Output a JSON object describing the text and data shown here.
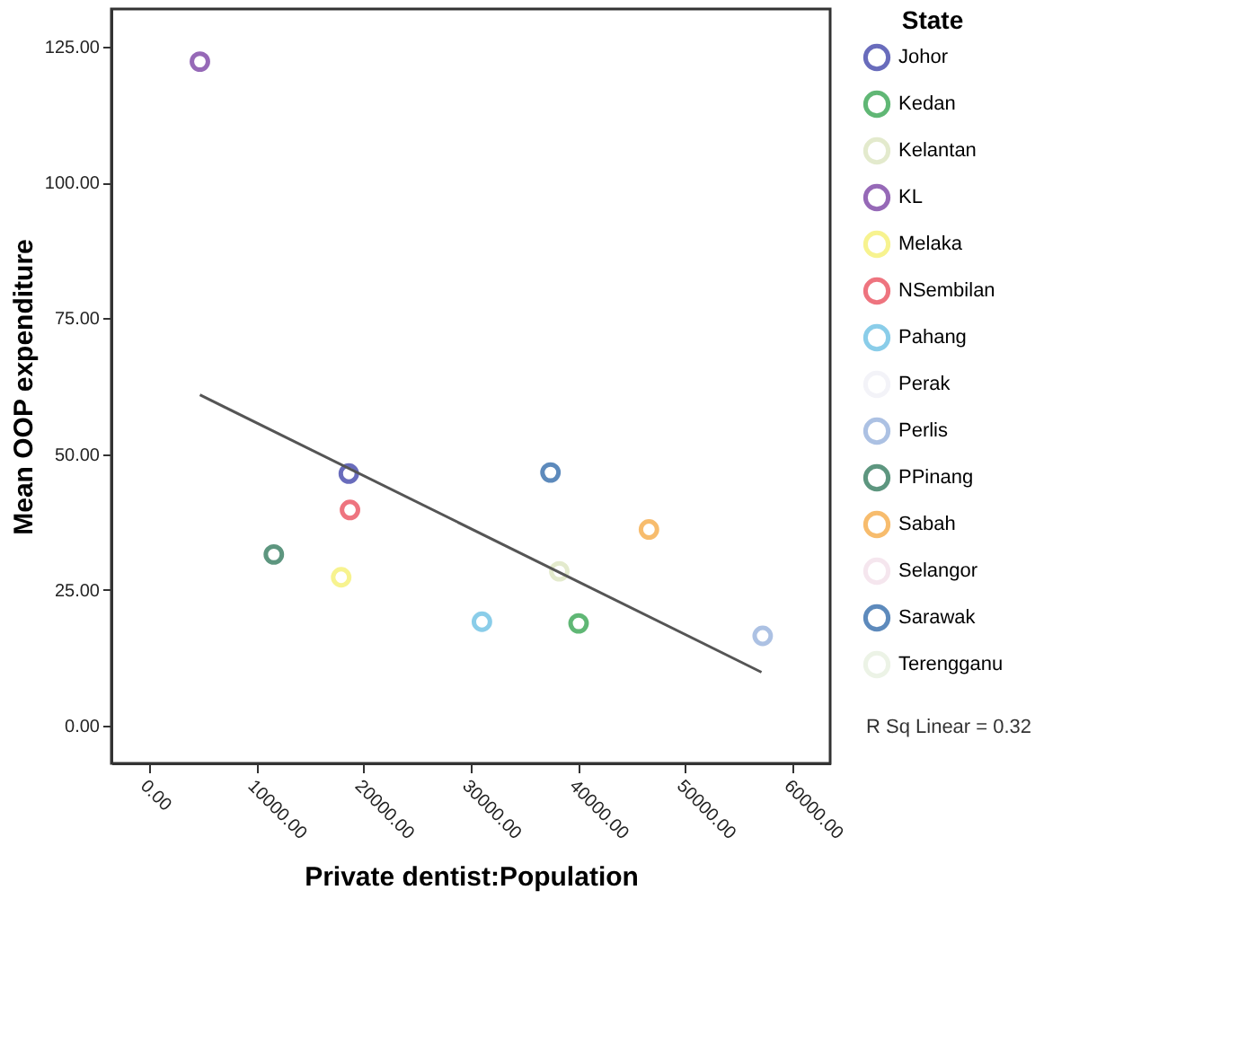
{
  "chart_data": {
    "type": "scatter",
    "xlabel": "Private dentist:Population",
    "ylabel": "Mean OOP expenditure",
    "legend_title": "State",
    "legend": "right",
    "marker": "circle",
    "grid": false,
    "xlim": [
      -3500,
      63500
    ],
    "ylim": [
      -7,
      132
    ],
    "xticks": [
      {
        "value": 0,
        "label": "0.00"
      },
      {
        "value": 10000,
        "label": "10000.00"
      },
      {
        "value": 20000,
        "label": "20000.00"
      },
      {
        "value": 30000,
        "label": "30000.00"
      },
      {
        "value": 40000,
        "label": "40000.00"
      },
      {
        "value": 50000,
        "label": "50000.00"
      },
      {
        "value": 60000,
        "label": "60000.00"
      }
    ],
    "yticks": [
      {
        "value": 0,
        "label": "0.00"
      },
      {
        "value": 25,
        "label": "25.00"
      },
      {
        "value": 50,
        "label": "50.00"
      },
      {
        "value": 75,
        "label": "75.00"
      },
      {
        "value": 100,
        "label": "100.00"
      },
      {
        "value": 125,
        "label": "125.00"
      }
    ],
    "series": [
      {
        "name": "Johor",
        "color": "#2a2fa0",
        "x": [
          18630
        ],
        "values": [
          46.4
        ]
      },
      {
        "name": "Kedan",
        "color": "#1e9a3c",
        "x": [
          40050
        ],
        "values": [
          18.8
        ]
      },
      {
        "name": "Kelantan",
        "color": "#d8e2b8",
        "x": [
          38250
        ],
        "values": [
          28.4
        ]
      },
      {
        "name": "KL",
        "color": "#6a2a9a",
        "x": [
          4750
        ],
        "values": [
          122.3
        ]
      },
      {
        "name": "Melaka",
        "color": "#f4ee60",
        "x": [
          17920
        ],
        "values": [
          27.3
        ]
      },
      {
        "name": "NSembilan",
        "color": "#e83a4a",
        "x": [
          18740
        ],
        "values": [
          39.7
        ]
      },
      {
        "name": "Pahang",
        "color": "#5ab8e0",
        "x": [
          31040
        ],
        "values": [
          19.1
        ]
      },
      {
        "name": "Perak",
        "color": "#eeeef6"
      },
      {
        "name": "Perlis",
        "color": "#8aa8d8",
        "x": [
          57210
        ],
        "values": [
          16.5
        ]
      },
      {
        "name": "PPinang",
        "color": "#1a6a4a",
        "x": [
          11640
        ],
        "values": [
          31.5
        ]
      },
      {
        "name": "Sabah",
        "color": "#f4a030",
        "x": [
          46610
        ],
        "values": [
          36.1
        ]
      },
      {
        "name": "Selangor",
        "color": "#f2dce8"
      },
      {
        "name": "Sarawak",
        "color": "#1a5aa0",
        "x": [
          37430
        ],
        "values": [
          46.6
        ]
      },
      {
        "name": "Terengganu",
        "color": "#e4eedc"
      },
      {
        "type": "line",
        "marker": "none",
        "color": "#555555",
        "x": [
          4750,
          57100
        ],
        "values": [
          60.9,
          9.8
        ]
      }
    ],
    "annotations": [
      "R Sq Linear = 0.32"
    ]
  }
}
